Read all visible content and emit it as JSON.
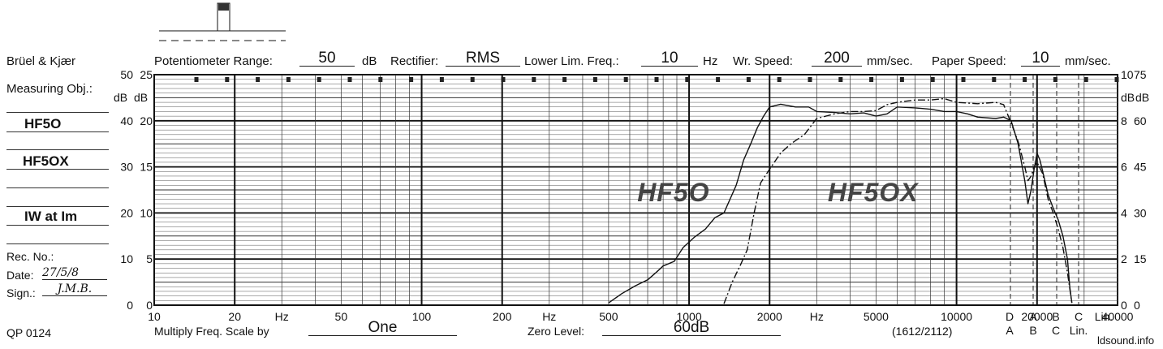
{
  "header": {
    "brand": "Brüel & Kjær",
    "potentiometer_label": "Potentiometer Range:",
    "potentiometer_value": "50",
    "potentiometer_unit": "dB",
    "rectifier_label": "Rectifier:",
    "rectifier_value": "RMS",
    "lower_lim_label": "Lower Lim. Freq.:",
    "lower_lim_value": "10",
    "lower_lim_unit": "Hz",
    "wr_speed_label": "Wr.  Speed:",
    "wr_speed_value": "200",
    "wr_speed_unit": "mm/sec.",
    "paper_speed_label": "Paper Speed:",
    "paper_speed_value": "10",
    "paper_speed_unit": "mm/sec."
  },
  "left_panel": {
    "measuring_obj_label": "Measuring Obj.:",
    "obj_line1": "HF5O",
    "obj_line2": "HF5OX",
    "obj_line3": "IW at Im",
    "rec_no_label": "Rec. No.:",
    "date_label": "Date:",
    "date_value": "27/5/8",
    "sign_label": "Sign.:",
    "sign_value": "J.M.B."
  },
  "footer": {
    "qp": "QP 0124",
    "multiply_label": "Multiply Freq. Scale by",
    "multiply_value": "One",
    "zero_level_label": "Zero Level:",
    "zero_level_value": "60dB",
    "model_code": "(1612/2112)",
    "watermark": "ldsound.info"
  },
  "chart_data": {
    "type": "line",
    "x_scale": "log",
    "xlim": [
      10,
      40000
    ],
    "ylim": [
      0,
      50
    ],
    "x_tick_labels": [
      {
        "value": 10,
        "label": "10"
      },
      {
        "value": 20,
        "label": "20"
      },
      {
        "value": 30,
        "label": "Hz"
      },
      {
        "value": 50,
        "label": "50"
      },
      {
        "value": 100,
        "label": "100"
      },
      {
        "value": 200,
        "label": "200"
      },
      {
        "value": 300,
        "label": "Hz"
      },
      {
        "value": 500,
        "label": "500"
      },
      {
        "value": 1000,
        "label": "1000"
      },
      {
        "value": 2000,
        "label": "2000"
      },
      {
        "value": 3000,
        "label": "Hz"
      },
      {
        "value": 5000,
        "label": "5000"
      },
      {
        "value": 10000,
        "label": "10000"
      },
      {
        "value": 20000,
        "label": "20000"
      },
      {
        "value": 40000,
        "label": "40000"
      }
    ],
    "extra_bottom_labels_top": [
      "D",
      "A",
      "B",
      "C",
      "Lin."
    ],
    "extra_bottom_labels_bottom": [
      "A",
      "B",
      "C",
      "Lin."
    ],
    "left_axis_unit": "dB",
    "left_axis_a": [
      "0",
      "10",
      "20",
      "30",
      "40",
      "50"
    ],
    "left_axis_b": [
      "0",
      "5",
      "10",
      "15",
      "20",
      "25"
    ],
    "right_axis_unit": "dB",
    "right_axis_a": [
      "0",
      "2",
      "4",
      "6",
      "8",
      "10"
    ],
    "right_axis_b": [
      "0",
      "15",
      "30",
      "45",
      "60",
      "75"
    ],
    "annotations": [
      "HF5O",
      "HF5OX"
    ],
    "series": [
      {
        "style": "solid",
        "label_ref": "HF5O",
        "points": [
          [
            500,
            0.5
          ],
          [
            560,
            2.5
          ],
          [
            630,
            4.2
          ],
          [
            700,
            5.5
          ],
          [
            750,
            7
          ],
          [
            800,
            8.5
          ],
          [
            880,
            9.5
          ],
          [
            950,
            12.5
          ],
          [
            1050,
            14.8
          ],
          [
            1150,
            16.5
          ],
          [
            1250,
            19
          ],
          [
            1350,
            20
          ],
          [
            1500,
            26
          ],
          [
            1600,
            31.5
          ],
          [
            1700,
            35
          ],
          [
            1800,
            38.5
          ],
          [
            1900,
            41
          ],
          [
            2000,
            43
          ],
          [
            2200,
            43.6
          ],
          [
            2500,
            43
          ],
          [
            2800,
            43
          ],
          [
            3000,
            42
          ],
          [
            3500,
            41.8
          ],
          [
            4000,
            41.5
          ],
          [
            4500,
            41.7
          ],
          [
            5000,
            41
          ],
          [
            5500,
            41.5
          ],
          [
            6000,
            43
          ],
          [
            7000,
            42.8
          ],
          [
            8000,
            42.5
          ],
          [
            9000,
            42
          ],
          [
            10000,
            42
          ],
          [
            11000,
            41.5
          ],
          [
            12000,
            40.8
          ],
          [
            14000,
            40.5
          ],
          [
            15000,
            40.8
          ],
          [
            16000,
            40
          ],
          [
            17000,
            35
          ],
          [
            18000,
            27
          ],
          [
            18500,
            22
          ],
          [
            19000,
            25
          ],
          [
            19500,
            29.5
          ],
          [
            20000,
            33
          ],
          [
            20500,
            31.5
          ],
          [
            21000,
            29
          ],
          [
            22000,
            24
          ],
          [
            23000,
            21
          ],
          [
            24000,
            18.5
          ],
          [
            25000,
            15
          ],
          [
            26000,
            10
          ],
          [
            26500,
            4
          ],
          [
            27000,
            0.5
          ]
        ]
      },
      {
        "style": "dash-dot",
        "label_ref": "HF5OX",
        "points": [
          [
            1350,
            0.3
          ],
          [
            1450,
            5
          ],
          [
            1550,
            8.5
          ],
          [
            1650,
            12
          ],
          [
            1750,
            20
          ],
          [
            1850,
            26.5
          ],
          [
            2000,
            29.5
          ],
          [
            2200,
            33
          ],
          [
            2400,
            35
          ],
          [
            2700,
            37
          ],
          [
            3000,
            40.5
          ],
          [
            3500,
            41.5
          ],
          [
            4000,
            42
          ],
          [
            4500,
            42
          ],
          [
            5000,
            42.2
          ],
          [
            5500,
            43.5
          ],
          [
            6000,
            44
          ],
          [
            7000,
            44.5
          ],
          [
            8000,
            44.5
          ],
          [
            9000,
            44.8
          ],
          [
            10000,
            44
          ],
          [
            12000,
            43.7
          ],
          [
            14000,
            44
          ],
          [
            15000,
            43.5
          ],
          [
            16000,
            39.5
          ],
          [
            17000,
            35.5
          ],
          [
            18000,
            30
          ],
          [
            18500,
            27
          ],
          [
            19000,
            28
          ],
          [
            19500,
            30
          ],
          [
            20000,
            31
          ],
          [
            21000,
            28.5
          ],
          [
            22000,
            23
          ],
          [
            23000,
            20
          ],
          [
            24000,
            16.5
          ],
          [
            25000,
            12.5
          ],
          [
            26000,
            7
          ],
          [
            27000,
            0.5
          ]
        ]
      }
    ]
  }
}
